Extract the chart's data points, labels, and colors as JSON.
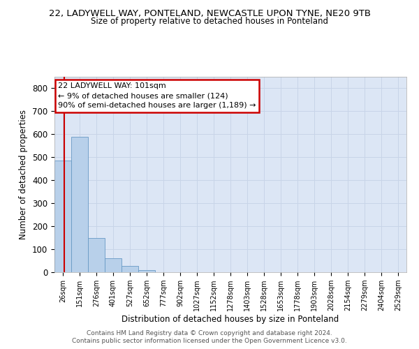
{
  "title_line1": "22, LADYWELL WAY, PONTELAND, NEWCASTLE UPON TYNE, NE20 9TB",
  "title_line2": "Size of property relative to detached houses in Ponteland",
  "xlabel": "Distribution of detached houses by size in Ponteland",
  "ylabel": "Number of detached properties",
  "bar_labels": [
    "26sqm",
    "151sqm",
    "276sqm",
    "401sqm",
    "527sqm",
    "652sqm",
    "777sqm",
    "902sqm",
    "1027sqm",
    "1152sqm",
    "1278sqm",
    "1403sqm",
    "1528sqm",
    "1653sqm",
    "1778sqm",
    "1903sqm",
    "2028sqm",
    "2154sqm",
    "2279sqm",
    "2404sqm",
    "2529sqm"
  ],
  "bar_values": [
    485,
    590,
    148,
    60,
    28,
    10,
    0,
    0,
    0,
    0,
    0,
    0,
    0,
    0,
    0,
    0,
    0,
    0,
    0,
    0,
    0
  ],
  "bar_color": "#b8d0ea",
  "bar_edge_color": "#6899c4",
  "annotation_line1": "22 LADYWELL WAY: 101sqm",
  "annotation_line2": "← 9% of detached houses are smaller (124)",
  "annotation_line3": "90% of semi-detached houses are larger (1,189) →",
  "ylim": [
    0,
    850
  ],
  "yticks": [
    0,
    100,
    200,
    300,
    400,
    500,
    600,
    700,
    800
  ],
  "grid_color": "#c8d4e8",
  "bg_color": "#dce6f5",
  "annotation_box_color": "#ffffff",
  "annotation_box_edge": "#cc0000",
  "vline_color": "#cc0000",
  "footer_line1": "Contains HM Land Registry data © Crown copyright and database right 2024.",
  "footer_line2": "Contains public sector information licensed under the Open Government Licence v3.0."
}
